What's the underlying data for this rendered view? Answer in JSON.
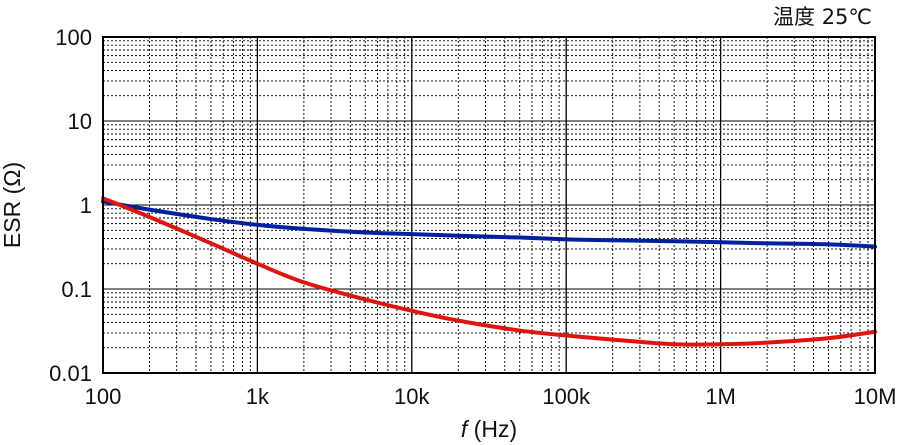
{
  "chart_data": {
    "type": "line",
    "annotation": "温度 25℃",
    "xlabel_italic": "f",
    "xlabel_rest": " (Hz)",
    "ylabel": "ESR (Ω)",
    "x_scale": "log",
    "y_scale": "log",
    "xlim": [
      100,
      10000000
    ],
    "ylim": [
      0.01,
      100
    ],
    "grid": true,
    "x_ticks": [
      {
        "value": 100,
        "label": "100"
      },
      {
        "value": 1000,
        "label": "1k"
      },
      {
        "value": 10000,
        "label": "10k"
      },
      {
        "value": 100000,
        "label": "100k"
      },
      {
        "value": 1000000,
        "label": "1M"
      },
      {
        "value": 10000000,
        "label": "10M"
      }
    ],
    "y_ticks": [
      {
        "value": 0.01,
        "label": "0.01"
      },
      {
        "value": 0.1,
        "label": "0.1"
      },
      {
        "value": 1,
        "label": "1"
      },
      {
        "value": 10,
        "label": "10"
      },
      {
        "value": 100,
        "label": "100"
      }
    ],
    "series": [
      {
        "color": "#00209f",
        "x": [
          100,
          200,
          500,
          1000,
          2000,
          5000,
          10000,
          20000,
          50000,
          100000,
          200000,
          500000,
          1000000,
          2000000,
          5000000,
          10000000
        ],
        "y": [
          1.1,
          0.88,
          0.68,
          0.58,
          0.52,
          0.47,
          0.45,
          0.43,
          0.41,
          0.39,
          0.38,
          0.37,
          0.36,
          0.35,
          0.34,
          0.32
        ]
      },
      {
        "color": "#e0140e",
        "x": [
          100,
          200,
          500,
          1000,
          2000,
          5000,
          10000,
          20000,
          50000,
          100000,
          200000,
          500000,
          1000000,
          2000000,
          5000000,
          10000000
        ],
        "y": [
          1.2,
          0.72,
          0.35,
          0.2,
          0.12,
          0.075,
          0.055,
          0.042,
          0.032,
          0.028,
          0.025,
          0.022,
          0.022,
          0.023,
          0.026,
          0.031
        ]
      }
    ]
  }
}
